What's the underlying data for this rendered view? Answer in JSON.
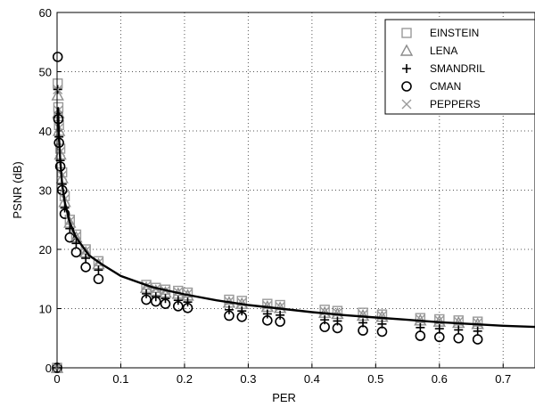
{
  "chart_data": {
    "type": "scatter",
    "xlabel": "PER",
    "ylabel": "PSNR (dB)",
    "xlim": [
      0,
      0.75
    ],
    "ylim": [
      0,
      60
    ],
    "x_ticks": [
      "0",
      "0.1",
      "0.2",
      "0.3",
      "0.4",
      "0.5",
      "0.6",
      "0.7"
    ],
    "y_ticks": [
      "0",
      "10",
      "20",
      "30",
      "40",
      "50",
      "60"
    ],
    "grid": true,
    "legend_position": "top-right",
    "series": [
      {
        "name": "EINSTEIN",
        "marker": "square",
        "color": "#9a9a9a",
        "points": [
          [
            0,
            0
          ],
          [
            0.001,
            48
          ],
          [
            0.002,
            44
          ],
          [
            0.003,
            41
          ],
          [
            0.005,
            37
          ],
          [
            0.008,
            33
          ],
          [
            0.012,
            29
          ],
          [
            0.02,
            25
          ],
          [
            0.03,
            22.5
          ],
          [
            0.045,
            20
          ],
          [
            0.065,
            18
          ],
          [
            0.14,
            14
          ],
          [
            0.155,
            13.5
          ],
          [
            0.17,
            13.2
          ],
          [
            0.19,
            13
          ],
          [
            0.205,
            12.7
          ],
          [
            0.27,
            11.5
          ],
          [
            0.29,
            11.3
          ],
          [
            0.33,
            10.8
          ],
          [
            0.35,
            10.6
          ],
          [
            0.42,
            9.8
          ],
          [
            0.44,
            9.6
          ],
          [
            0.48,
            9.3
          ],
          [
            0.51,
            9
          ],
          [
            0.57,
            8.4
          ],
          [
            0.6,
            8.2
          ],
          [
            0.63,
            8
          ],
          [
            0.66,
            7.8
          ]
        ]
      },
      {
        "name": "LENA",
        "marker": "triangle",
        "color": "#8c8c8c",
        "points": [
          [
            0,
            0
          ],
          [
            0.001,
            46
          ],
          [
            0.002,
            43
          ],
          [
            0.003,
            40
          ],
          [
            0.005,
            36
          ],
          [
            0.008,
            32
          ],
          [
            0.012,
            28
          ],
          [
            0.02,
            24.5
          ],
          [
            0.03,
            22
          ],
          [
            0.045,
            19.5
          ],
          [
            0.065,
            17.5
          ],
          [
            0.14,
            13.5
          ],
          [
            0.155,
            13
          ],
          [
            0.17,
            12.7
          ],
          [
            0.19,
            12.5
          ],
          [
            0.205,
            12.2
          ],
          [
            0.27,
            11
          ],
          [
            0.29,
            10.8
          ],
          [
            0.33,
            10.3
          ],
          [
            0.35,
            10.1
          ],
          [
            0.42,
            9.3
          ],
          [
            0.44,
            9.1
          ],
          [
            0.48,
            8.8
          ],
          [
            0.51,
            8.6
          ],
          [
            0.57,
            8
          ],
          [
            0.6,
            7.8
          ],
          [
            0.63,
            7.6
          ],
          [
            0.66,
            7.4
          ]
        ]
      },
      {
        "name": "SMANDRIL",
        "marker": "plus",
        "color": "#000000",
        "points": [
          [
            0,
            0
          ],
          [
            0.001,
            47
          ],
          [
            0.002,
            43
          ],
          [
            0.003,
            39
          ],
          [
            0.005,
            35
          ],
          [
            0.008,
            31
          ],
          [
            0.012,
            27
          ],
          [
            0.02,
            23.5
          ],
          [
            0.03,
            21
          ],
          [
            0.045,
            18.5
          ],
          [
            0.065,
            16.5
          ],
          [
            0.14,
            12.5
          ],
          [
            0.155,
            12
          ],
          [
            0.17,
            11.7
          ],
          [
            0.19,
            11.4
          ],
          [
            0.205,
            11.1
          ],
          [
            0.27,
            9.8
          ],
          [
            0.29,
            9.6
          ],
          [
            0.33,
            9.1
          ],
          [
            0.35,
            8.9
          ],
          [
            0.42,
            8.1
          ],
          [
            0.44,
            7.9
          ],
          [
            0.48,
            7.6
          ],
          [
            0.51,
            7.4
          ],
          [
            0.57,
            6.8
          ],
          [
            0.6,
            6.6
          ],
          [
            0.63,
            6.4
          ],
          [
            0.66,
            6.2
          ]
        ]
      },
      {
        "name": "CMAN",
        "marker": "circle",
        "color": "#000000",
        "points": [
          [
            0,
            0
          ],
          [
            0.001,
            52.5
          ],
          [
            0.002,
            42
          ],
          [
            0.003,
            38
          ],
          [
            0.005,
            34
          ],
          [
            0.008,
            30
          ],
          [
            0.012,
            26
          ],
          [
            0.02,
            22
          ],
          [
            0.03,
            19.5
          ],
          [
            0.045,
            17
          ],
          [
            0.065,
            15
          ],
          [
            0.14,
            11.5
          ],
          [
            0.155,
            11.2
          ],
          [
            0.17,
            10.8
          ],
          [
            0.19,
            10.4
          ],
          [
            0.205,
            10.1
          ],
          [
            0.27,
            8.8
          ],
          [
            0.29,
            8.6
          ],
          [
            0.33,
            8
          ],
          [
            0.35,
            7.8
          ],
          [
            0.42,
            6.9
          ],
          [
            0.44,
            6.7
          ],
          [
            0.48,
            6.3
          ],
          [
            0.51,
            6.1
          ],
          [
            0.57,
            5.4
          ],
          [
            0.6,
            5.2
          ],
          [
            0.63,
            5
          ],
          [
            0.66,
            4.8
          ]
        ]
      },
      {
        "name": "PEPPERS",
        "marker": "x",
        "color": "#9a9a9a",
        "points": [
          [
            0,
            0
          ],
          [
            0.001,
            47
          ],
          [
            0.002,
            43.5
          ],
          [
            0.003,
            40.5
          ],
          [
            0.005,
            36.5
          ],
          [
            0.008,
            32.5
          ],
          [
            0.012,
            28.5
          ],
          [
            0.02,
            24.8
          ],
          [
            0.03,
            22.2
          ],
          [
            0.045,
            19.8
          ],
          [
            0.065,
            17.8
          ],
          [
            0.14,
            13.8
          ],
          [
            0.155,
            13.3
          ],
          [
            0.17,
            13
          ],
          [
            0.19,
            12.8
          ],
          [
            0.205,
            12.5
          ],
          [
            0.27,
            11.2
          ],
          [
            0.29,
            11
          ],
          [
            0.33,
            10.5
          ],
          [
            0.35,
            10.3
          ],
          [
            0.42,
            9.5
          ],
          [
            0.44,
            9.3
          ],
          [
            0.48,
            9
          ],
          [
            0.51,
            8.8
          ],
          [
            0.57,
            8.2
          ],
          [
            0.6,
            8
          ],
          [
            0.63,
            7.8
          ],
          [
            0.66,
            7.6
          ]
        ]
      }
    ],
    "fit_curve": {
      "color": "#000000",
      "points": [
        [
          0.0015,
          44
        ],
        [
          0.003,
          39
        ],
        [
          0.005,
          35
        ],
        [
          0.008,
          31
        ],
        [
          0.012,
          28
        ],
        [
          0.02,
          24.5
        ],
        [
          0.03,
          22
        ],
        [
          0.05,
          19
        ],
        [
          0.07,
          17.5
        ],
        [
          0.1,
          15.5
        ],
        [
          0.15,
          13.6
        ],
        [
          0.2,
          12.4
        ],
        [
          0.25,
          11.4
        ],
        [
          0.3,
          10.6
        ],
        [
          0.35,
          10
        ],
        [
          0.4,
          9.4
        ],
        [
          0.45,
          8.9
        ],
        [
          0.5,
          8.5
        ],
        [
          0.55,
          8.1
        ],
        [
          0.6,
          7.7
        ],
        [
          0.65,
          7.4
        ],
        [
          0.7,
          7.1
        ],
        [
          0.75,
          6.9
        ]
      ]
    }
  }
}
